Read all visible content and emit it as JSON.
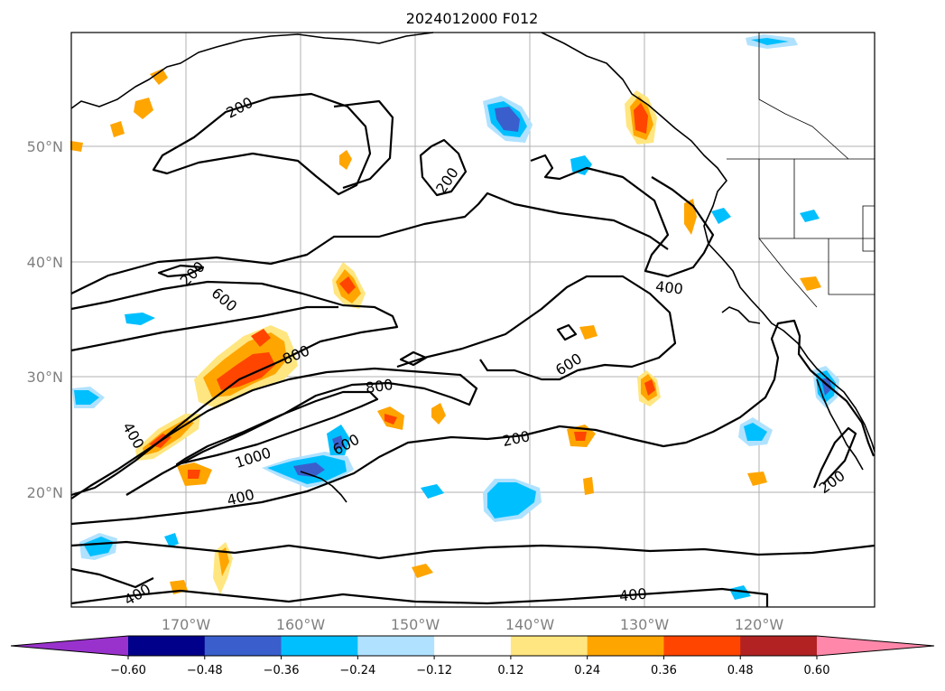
{
  "title": "2024012000 F012",
  "lon_ticks": [
    "170°W",
    "160°W",
    "150°W",
    "140°W",
    "130°W",
    "120°W"
  ],
  "lat_ticks": [
    "50°N",
    "40°N",
    "30°N",
    "20°N"
  ],
  "colorbar": {
    "ticks": [
      "−0.60",
      "−0.48",
      "−0.36",
      "−0.24",
      "−0.12",
      "0.12",
      "0.24",
      "0.36",
      "0.48",
      "0.60"
    ],
    "colors": [
      "#9932cc",
      "#00008b",
      "#3a5fcd",
      "#00bfff",
      "#b0e2ff",
      "#ffffff",
      "#ffe680",
      "#ffa500",
      "#ff4500",
      "#b22222",
      "#ff88aa"
    ]
  },
  "contour_labels": [
    "200",
    "200",
    "200",
    "600",
    "800",
    "800",
    "600",
    "1000",
    "400",
    "400",
    "600",
    "200",
    "400",
    "200",
    "400",
    "400"
  ],
  "shading_colors": {
    "pos_light": "#ffe680",
    "pos_mid": "#ffa500",
    "pos_high": "#ff4500",
    "pos_top": "#b22222",
    "neg_light": "#b0e2ff",
    "neg_mid": "#00bfff",
    "neg_high": "#3a5fcd"
  }
}
